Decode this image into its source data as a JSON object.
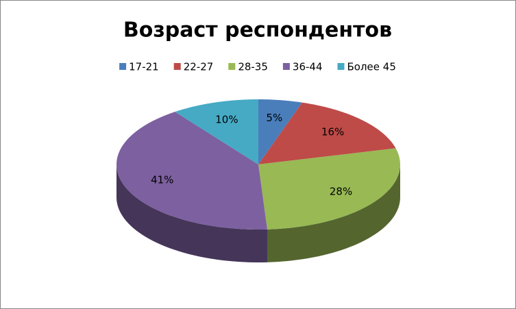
{
  "chart_data": {
    "type": "pie",
    "title": "Возраст респондентов",
    "categories": [
      "17-21",
      "22-27",
      "28-35",
      "36-44",
      "Более 45"
    ],
    "values": [
      5,
      16,
      28,
      41,
      10
    ],
    "value_labels": [
      "5%",
      "16%",
      "28%",
      "41%",
      "10%"
    ],
    "colors": [
      "#4a7ebb",
      "#be4b48",
      "#98b954",
      "#7d60a0",
      "#46aac5"
    ],
    "legend": "top"
  }
}
